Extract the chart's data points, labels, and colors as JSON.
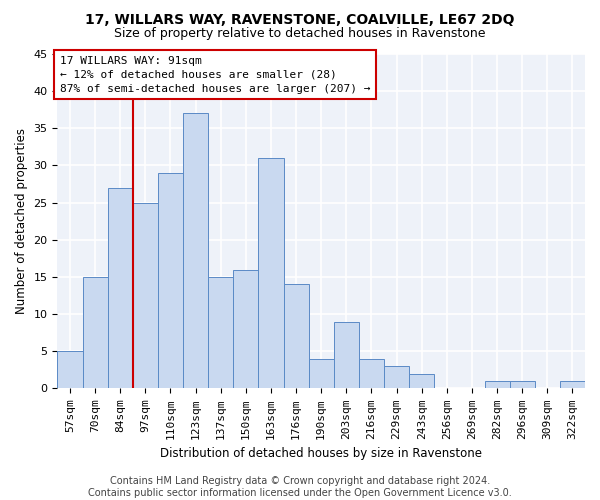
{
  "title": "17, WILLARS WAY, RAVENSTONE, COALVILLE, LE67 2DQ",
  "subtitle": "Size of property relative to detached houses in Ravenstone",
  "xlabel": "Distribution of detached houses by size in Ravenstone",
  "ylabel": "Number of detached properties",
  "categories": [
    "57sqm",
    "70sqm",
    "84sqm",
    "97sqm",
    "110sqm",
    "123sqm",
    "137sqm",
    "150sqm",
    "163sqm",
    "176sqm",
    "190sqm",
    "203sqm",
    "216sqm",
    "229sqm",
    "243sqm",
    "256sqm",
    "269sqm",
    "282sqm",
    "296sqm",
    "309sqm",
    "322sqm"
  ],
  "values": [
    5,
    15,
    27,
    25,
    29,
    37,
    15,
    16,
    31,
    14,
    4,
    9,
    4,
    3,
    2,
    0,
    0,
    1,
    1,
    0,
    1
  ],
  "bar_color": "#c9d9f0",
  "bar_edge_color": "#5a8ac6",
  "vline_x_idx": 2.5,
  "vline_color": "#cc0000",
  "annotation_text": "17 WILLARS WAY: 91sqm\n← 12% of detached houses are smaller (28)\n87% of semi-detached houses are larger (207) →",
  "annotation_box_color": "white",
  "annotation_box_edge": "#cc0000",
  "ylim": [
    0,
    45
  ],
  "yticks": [
    0,
    5,
    10,
    15,
    20,
    25,
    30,
    35,
    40,
    45
  ],
  "footnote": "Contains HM Land Registry data © Crown copyright and database right 2024.\nContains public sector information licensed under the Open Government Licence v3.0.",
  "bg_color": "#eef2f9",
  "grid_color": "white",
  "title_fontsize": 10,
  "subtitle_fontsize": 9,
  "axis_label_fontsize": 8.5,
  "tick_fontsize": 8,
  "footnote_fontsize": 7
}
